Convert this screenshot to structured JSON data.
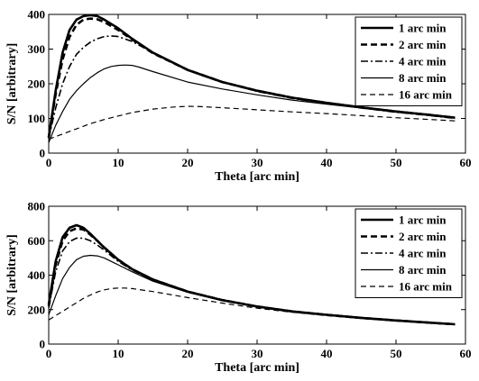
{
  "chart_data": [
    {
      "type": "line",
      "xlabel": "Theta [arc min]",
      "ylabel": "S/N [arbitrary]",
      "xlim": [
        0,
        60
      ],
      "ylim": [
        0,
        400
      ],
      "xticks": [
        "0",
        "10",
        "20",
        "30",
        "40",
        "50",
        "60"
      ],
      "yticks": [
        "0",
        "100",
        "200",
        "300",
        "400"
      ],
      "grid": false,
      "legend": "top-right",
      "series": [
        {
          "name": "1 arc min",
          "style": "solid-thick",
          "x": [
            0,
            1,
            2,
            3,
            4,
            5,
            6,
            7,
            8,
            10,
            12,
            15,
            20,
            25,
            30,
            35,
            40,
            45,
            50,
            55,
            58.5
          ],
          "y": [
            45,
            180,
            290,
            355,
            385,
            395,
            398,
            395,
            385,
            360,
            330,
            290,
            240,
            205,
            180,
            160,
            145,
            132,
            120,
            110,
            102
          ]
        },
        {
          "name": "2 arc min",
          "style": "dashed-thick",
          "x": [
            0,
            1,
            2,
            3,
            4,
            5,
            6,
            7,
            8,
            10,
            12,
            15,
            20,
            25,
            30,
            35,
            40,
            45,
            50,
            55,
            58.5
          ],
          "y": [
            45,
            170,
            270,
            335,
            370,
            385,
            388,
            386,
            378,
            355,
            328,
            288,
            240,
            205,
            180,
            160,
            145,
            132,
            120,
            110,
            102
          ]
        },
        {
          "name": "4 arc min",
          "style": "dashdot",
          "x": [
            0,
            1,
            2,
            3,
            4,
            5,
            6,
            7,
            8,
            9,
            10,
            12,
            15,
            20,
            25,
            30,
            35,
            40,
            45,
            50,
            55,
            58.5
          ],
          "y": [
            42,
            130,
            200,
            250,
            285,
            305,
            320,
            330,
            336,
            338,
            336,
            322,
            290,
            240,
            205,
            178,
            158,
            143,
            130,
            118,
            108,
            100
          ]
        },
        {
          "name": "8 arc min",
          "style": "solid-thin",
          "x": [
            0,
            1,
            2,
            3,
            4,
            5,
            6,
            7,
            8,
            9,
            10,
            11,
            12,
            13,
            15,
            20,
            25,
            30,
            35,
            40,
            45,
            50,
            55,
            58.5
          ],
          "y": [
            30,
            80,
            120,
            155,
            180,
            200,
            218,
            232,
            243,
            250,
            253,
            254,
            253,
            248,
            235,
            205,
            185,
            168,
            153,
            141,
            130,
            120,
            110,
            104
          ]
        },
        {
          "name": "16 arc min",
          "style": "dashed-thin",
          "x": [
            0,
            2,
            4,
            6,
            8,
            10,
            12,
            15,
            18,
            20,
            22,
            25,
            30,
            35,
            40,
            45,
            50,
            55,
            58.5
          ],
          "y": [
            40,
            55,
            70,
            85,
            97,
            107,
            117,
            127,
            133,
            135,
            134,
            131,
            125,
            119,
            114,
            108,
            102,
            97,
            93
          ]
        }
      ]
    },
    {
      "type": "line",
      "xlabel": "Theta [arc min]",
      "ylabel": "S/N [arbitrary]",
      "xlim": [
        0,
        60
      ],
      "ylim": [
        0,
        800
      ],
      "xticks": [
        "0",
        "10",
        "20",
        "30",
        "40",
        "50",
        "60"
      ],
      "yticks": [
        "0",
        "200",
        "400",
        "600",
        "800"
      ],
      "grid": false,
      "legend": "top-right",
      "series": [
        {
          "name": "1 arc min",
          "style": "solid-thick",
          "x": [
            0,
            1,
            2,
            3,
            4,
            5,
            6,
            7,
            8,
            10,
            12,
            15,
            20,
            25,
            30,
            35,
            40,
            45,
            50,
            55,
            58.5
          ],
          "y": [
            230,
            480,
            620,
            675,
            690,
            675,
            640,
            600,
            560,
            490,
            435,
            375,
            305,
            255,
            218,
            190,
            170,
            152,
            137,
            124,
            115
          ]
        },
        {
          "name": "2 arc min",
          "style": "dashed-thick",
          "x": [
            0,
            1,
            2,
            3,
            4,
            5,
            6,
            7,
            8,
            10,
            12,
            15,
            20,
            25,
            30,
            35,
            40,
            45,
            50,
            55,
            58.5
          ],
          "y": [
            220,
            460,
            600,
            655,
            672,
            665,
            635,
            600,
            560,
            490,
            435,
            375,
            305,
            255,
            218,
            190,
            170,
            152,
            137,
            124,
            115
          ]
        },
        {
          "name": "4 arc min",
          "style": "dashdot",
          "x": [
            0,
            1,
            2,
            3,
            4,
            5,
            6,
            7,
            8,
            10,
            12,
            15,
            20,
            25,
            30,
            35,
            40,
            45,
            50,
            55,
            58.5
          ],
          "y": [
            210,
            420,
            540,
            595,
            615,
            615,
            600,
            575,
            545,
            480,
            430,
            372,
            303,
            253,
            217,
            189,
            169,
            151,
            136,
            123,
            114
          ]
        },
        {
          "name": "8 arc min",
          "style": "solid-thin",
          "x": [
            0,
            1,
            2,
            3,
            4,
            5,
            6,
            7,
            8,
            10,
            12,
            15,
            20,
            25,
            30,
            35,
            40,
            45,
            50,
            55,
            58.5
          ],
          "y": [
            170,
            280,
            380,
            445,
            490,
            510,
            515,
            512,
            500,
            460,
            420,
            365,
            300,
            252,
            216,
            188,
            168,
            150,
            135,
            122,
            113
          ]
        },
        {
          "name": "16 arc min",
          "style": "dashed-thin",
          "x": [
            0,
            1,
            2,
            3,
            4,
            5,
            6,
            7,
            8,
            9,
            10,
            11,
            12,
            15,
            20,
            25,
            30,
            35,
            40,
            45,
            50,
            55,
            58.5
          ],
          "y": [
            140,
            165,
            190,
            215,
            240,
            265,
            285,
            302,
            315,
            322,
            325,
            325,
            322,
            305,
            270,
            238,
            208,
            185,
            165,
            148,
            134,
            121,
            112
          ]
        }
      ]
    }
  ]
}
